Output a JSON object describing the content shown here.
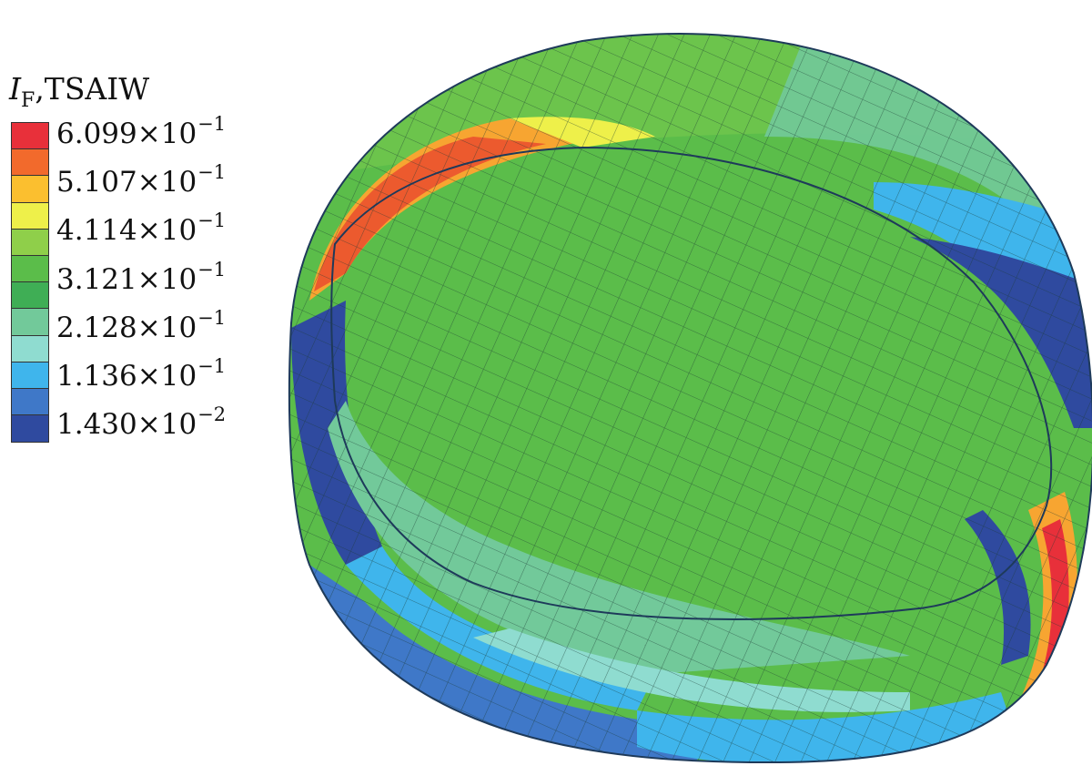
{
  "legend": {
    "symbol": "I",
    "subscript": "F",
    "criterion": ",TSAIW",
    "colors": [
      "#e8303a",
      "#f26a2c",
      "#fbbf2f",
      "#eef04a",
      "#8fcf4a",
      "#5bbd4a",
      "#3fae55",
      "#72c99a",
      "#8fdcd0",
      "#3fb5ec",
      "#3f78c8",
      "#2f4a9f"
    ],
    "ticks": [
      {
        "mantissa": "6.099",
        "exponent": "−1"
      },
      {
        "mantissa": "5.107",
        "exponent": "−1"
      },
      {
        "mantissa": "4.114",
        "exponent": "−1"
      },
      {
        "mantissa": "3.121",
        "exponent": "−1"
      },
      {
        "mantissa": "2.128",
        "exponent": "−1"
      },
      {
        "mantissa": "1.136",
        "exponent": "−1"
      },
      {
        "mantissa": "1.430",
        "exponent": "−2"
      }
    ],
    "times": "×10"
  }
}
